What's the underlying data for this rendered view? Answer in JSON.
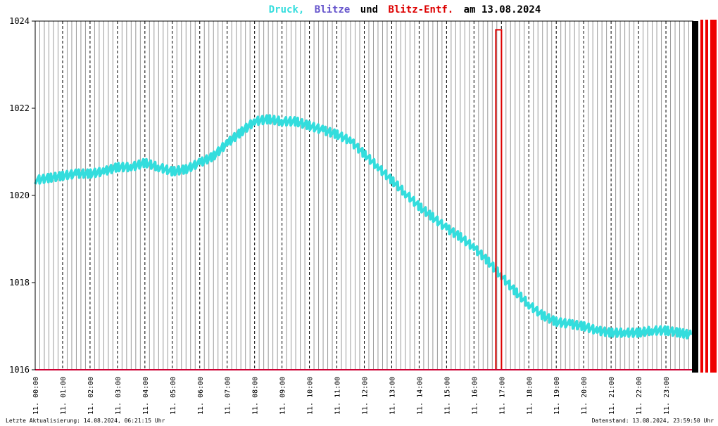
{
  "title": {
    "part1": "Druck,",
    "part2": "Blitze",
    "part3": "und",
    "part4": "Blitz-Entf.",
    "part5": "am 13.08.2024",
    "colors": {
      "druck": "#33dddd",
      "blitze": "#6655cc",
      "und": "#000000",
      "entf": "#dd0000",
      "date": "#000000"
    }
  },
  "footer": {
    "left": "Letzte Aktualisierung: 14.08.2024, 06:21:15 Uhr",
    "right": "Datenstand: 13.08.2024, 23:59:50 Uhr"
  },
  "chart_data": {
    "type": "line",
    "title": "Druck, Blitze und Blitz-Entf. am 13.08.2024",
    "ylim": [
      1016,
      1024
    ],
    "yticks": [
      "1016",
      "1018",
      "1020",
      "1022",
      "1024"
    ],
    "xticks": [
      "11. 00:00",
      "11. 01:00",
      "11. 02:00",
      "11. 03:00",
      "11. 04:00",
      "11. 05:00",
      "11. 06:00",
      "11. 07:00",
      "11. 08:00",
      "11. 09:00",
      "11. 10:00",
      "11. 11:00",
      "11. 12:00",
      "11. 13:00",
      "11. 14:00",
      "11. 15:00",
      "11. 16:00",
      "11. 17:00",
      "11. 18:00",
      "11. 19:00",
      "11. 20:00",
      "11. 21:00",
      "11. 22:00",
      "11. 23:00"
    ],
    "grid": true,
    "series": [
      {
        "kind": "pressure",
        "color": "#33dddd",
        "x": [
          0,
          0.5,
          1,
          1.5,
          2,
          2.5,
          3,
          3.5,
          4,
          4.5,
          5,
          5.5,
          6,
          6.5,
          7,
          7.5,
          8,
          8.5,
          9,
          9.5,
          10,
          10.5,
          11,
          11.5,
          12,
          12.5,
          13,
          13.5,
          14,
          14.5,
          15,
          15.5,
          16,
          16.5,
          17,
          17.5,
          18,
          18.5,
          19,
          19.5,
          20,
          20.5,
          21,
          21.5,
          22,
          22.5,
          23,
          23.5,
          23.9
        ],
        "values": [
          1020.35,
          1020.4,
          1020.45,
          1020.5,
          1020.5,
          1020.55,
          1020.65,
          1020.65,
          1020.75,
          1020.65,
          1020.55,
          1020.6,
          1020.75,
          1020.9,
          1021.2,
          1021.45,
          1021.7,
          1021.75,
          1021.7,
          1021.7,
          1021.6,
          1021.5,
          1021.4,
          1021.25,
          1020.95,
          1020.65,
          1020.35,
          1020.05,
          1019.75,
          1019.5,
          1019.25,
          1019.05,
          1018.8,
          1018.5,
          1018.15,
          1017.8,
          1017.5,
          1017.25,
          1017.1,
          1017.05,
          1017.0,
          1016.9,
          1016.85,
          1016.85,
          1016.85,
          1016.9,
          1016.9,
          1016.85,
          1016.8
        ]
      },
      {
        "kind": "lightning-distance",
        "color": "#dd0000",
        "x": [
          16.9
        ],
        "values": [
          1023.8
        ]
      }
    ]
  }
}
